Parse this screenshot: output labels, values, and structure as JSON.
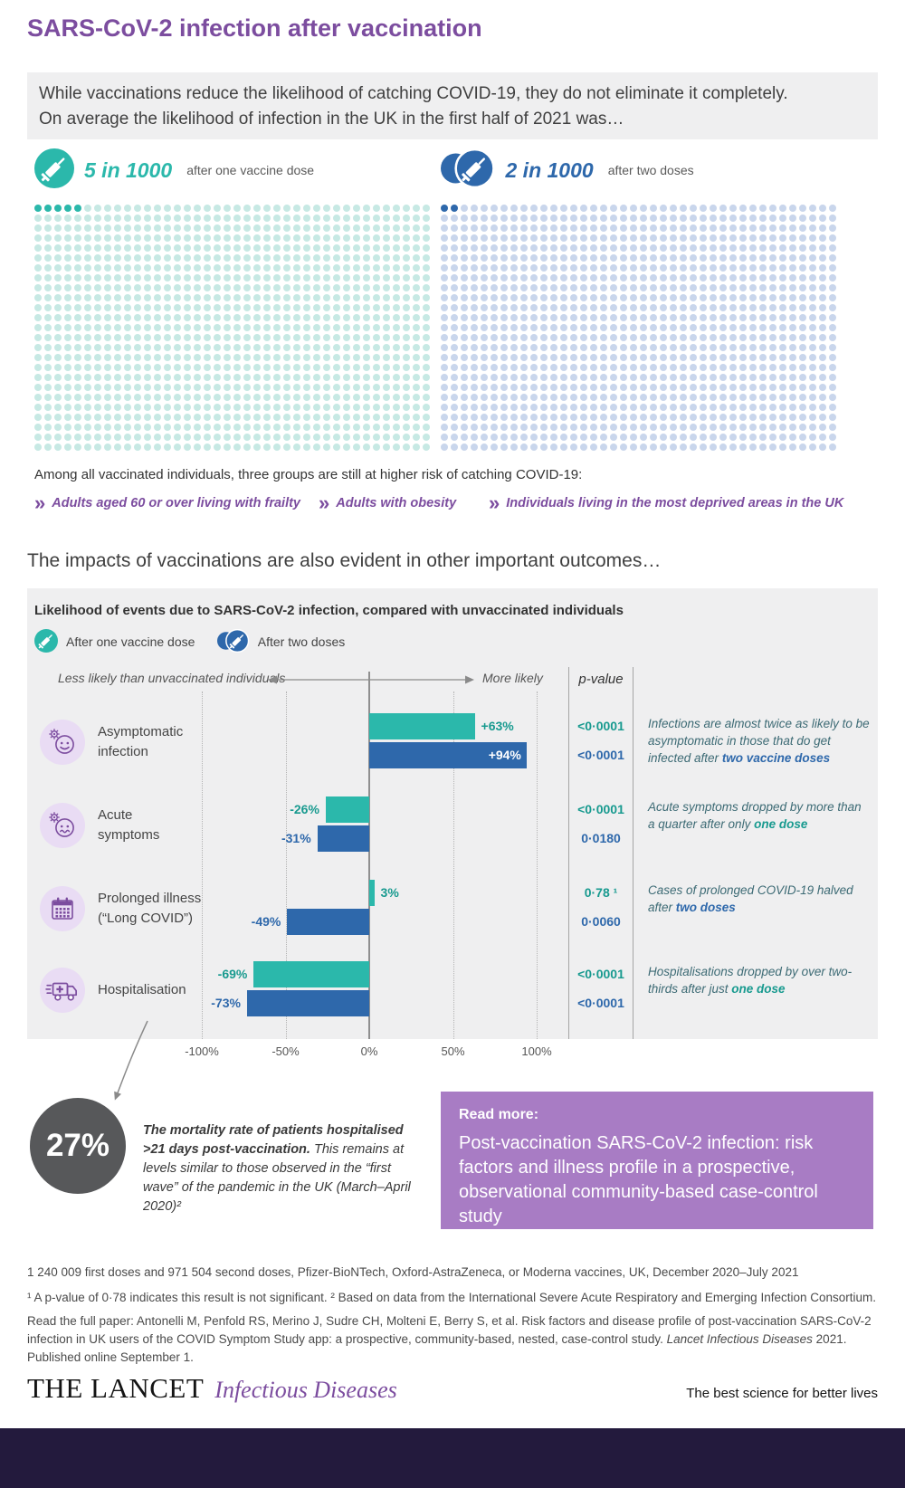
{
  "page": {
    "title": "SARS-CoV-2 infection after vaccination",
    "colors": {
      "purple": "#7c4d9f",
      "teal": "#2bb8ab",
      "teal_dark": "#189a8f",
      "teal_light": "#c7e9e4",
      "blue": "#2e68ab",
      "blue_light": "#c9d6ec",
      "panel_gray": "#efeff0",
      "dark_circle": "#57585a",
      "readmore_purple": "#a87cc4",
      "footer_bar": "#231a3d",
      "note_text": "#3c6a74"
    }
  },
  "intro": {
    "line1": "While vaccinations reduce the likelihood of catching COVID-19, they do not eliminate it completely.",
    "line2": "On average the likelihood of infection in the UK in the first half of 2021 was…"
  },
  "dose_grids": [
    {
      "icon": "syringe-one-dose-icon",
      "stat": "5 in 1000",
      "caption": "after one vaccine dose",
      "total": 1000,
      "highlighted": 5,
      "columns": 40,
      "dot_color": "#c7e9e4",
      "highlight_color": "#2bb8ab"
    },
    {
      "icon": "syringe-two-doses-icon",
      "stat": "2 in 1000",
      "caption": "after two doses",
      "total": 1000,
      "highlighted": 2,
      "columns": 40,
      "dot_color": "#c9d6ec",
      "highlight_color": "#2e68ab"
    }
  ],
  "risk_groups": {
    "intro": "Among all vaccinated individuals, three groups are still at higher risk of catching COVID-19:",
    "items": [
      "Adults aged 60 or over living with frailty",
      "Adults with obesity",
      "Individuals living in the most deprived areas in the UK"
    ]
  },
  "outcomes_heading": "The impacts of vaccinations are also evident in other important outcomes…",
  "chart_data": {
    "type": "bar",
    "title": "Likelihood of events due to SARS-CoV-2 infection, compared with unvaccinated individuals",
    "legend": [
      {
        "label": "After one vaccine dose",
        "icon": "syringe-one-dose-icon",
        "color": "#2bb8ab"
      },
      {
        "label": "After two doses",
        "icon": "syringe-two-doses-icon",
        "color": "#2e68ab"
      }
    ],
    "axis": {
      "left_label": "Less likely than unvaccinated individuals",
      "right_label": "More likely",
      "pvalue_label": "p-value",
      "ticks": [
        "-100%",
        "-50%",
        "0%",
        "50%",
        "100%"
      ],
      "tick_values": [
        -100,
        -50,
        0,
        50,
        100
      ],
      "xlim": [
        -100,
        100
      ]
    },
    "categories": [
      "Asymptomatic infection",
      "Acute symptoms",
      "Prolonged illness (“Long COVID”)",
      "Hospitalisation"
    ],
    "series": [
      {
        "name": "After one vaccine dose",
        "values": [
          63,
          -26,
          3,
          -69
        ]
      },
      {
        "name": "After two doses",
        "values": [
          94,
          -31,
          -49,
          -73
        ]
      }
    ],
    "rows": [
      {
        "label_lines": [
          "Asymptomatic",
          "infection"
        ],
        "icon": "asymptomatic-face-icon",
        "one_dose_pct": 63,
        "two_dose_pct": 94,
        "one_dose_label": "+63%",
        "two_dose_label": "+94%",
        "one_dose_label_inside": false,
        "two_dose_label_inside": true,
        "one_dose_p": "<0·0001",
        "two_dose_p": "<0·0001",
        "note_pre": "Infections are almost twice as likely to be asymptomatic in those that do get infected after ",
        "note_emphasis": "two vaccine doses",
        "emphasis_color": "blue",
        "note_post": ""
      },
      {
        "label_lines": [
          "Acute",
          "symptoms"
        ],
        "icon": "acute-symptoms-face-icon",
        "one_dose_pct": -26,
        "two_dose_pct": -31,
        "one_dose_label": "-26%",
        "two_dose_label": "-31%",
        "one_dose_label_inside": false,
        "two_dose_label_inside": false,
        "one_dose_p": "<0·0001",
        "two_dose_p": "0·0180",
        "note_pre": "Acute symptoms dropped by more than a quarter after only ",
        "note_emphasis": "one dose",
        "emphasis_color": "teal",
        "note_post": ""
      },
      {
        "label_lines": [
          "Prolonged illness",
          "(“Long COVID”)"
        ],
        "icon": "calendar-icon",
        "one_dose_pct": 3,
        "two_dose_pct": -49,
        "one_dose_label": "3%",
        "two_dose_label": "-49%",
        "one_dose_label_inside": false,
        "two_dose_label_inside": false,
        "one_dose_p": "0·78 ¹",
        "two_dose_p": "0·0060",
        "note_pre": "Cases of prolonged COVID-19 halved after ",
        "note_emphasis": "two doses",
        "emphasis_color": "blue",
        "note_post": ""
      },
      {
        "label_lines": [
          "Hospitalisation"
        ],
        "icon": "ambulance-icon",
        "one_dose_pct": -69,
        "two_dose_pct": -73,
        "one_dose_label": "-69%",
        "two_dose_label": "-73%",
        "one_dose_label_inside": false,
        "two_dose_label_inside": false,
        "one_dose_p": "<0·0001",
        "two_dose_p": "<0·0001",
        "note_pre": "Hospitalisations dropped by over two-thirds after just ",
        "note_emphasis": "one dose",
        "emphasis_color": "teal",
        "note_post": ""
      }
    ]
  },
  "mortality": {
    "stat": "27%",
    "bold_text": "The mortality rate of patients hospitalised >21 days post-vaccination.",
    "text": " This remains at levels similar to those observed in the “first wave” of the pandemic in the UK (March–April 2020)²"
  },
  "read_more": {
    "label": "Read more:",
    "title": "Post-vaccination SARS-CoV-2 infection: risk factors and illness profile in a prospective, observational community-based case-control study"
  },
  "footnotes": {
    "doses": "1 240 009 first doses and 971 504 second doses, Pfizer-BioNTech, Oxford-AstraZeneca, or Moderna vaccines, UK, December 2020–July 2021",
    "notes": "¹ A p-value of 0·78 indicates this result is not significant. ² Based on data from the International Severe Acute Respiratory and Emerging Infection Consortium.",
    "paper_pre": "Read the full paper: Antonelli M, Penfold RS, Merino J, Sudre CH, Molteni E, Berry S, et al. Risk factors and disease profile of post-vaccination SARS-CoV-2 infection in UK users of the COVID Symptom Study app: a prospective, community-based, nested, case-control study. ",
    "paper_italic": "Lancet Infectious Diseases",
    "paper_post": " 2021. Published online September 1."
  },
  "footer": {
    "brand": "THE LANCET",
    "brand_sub": "Infectious Diseases",
    "tagline": "The best science for better lives"
  }
}
